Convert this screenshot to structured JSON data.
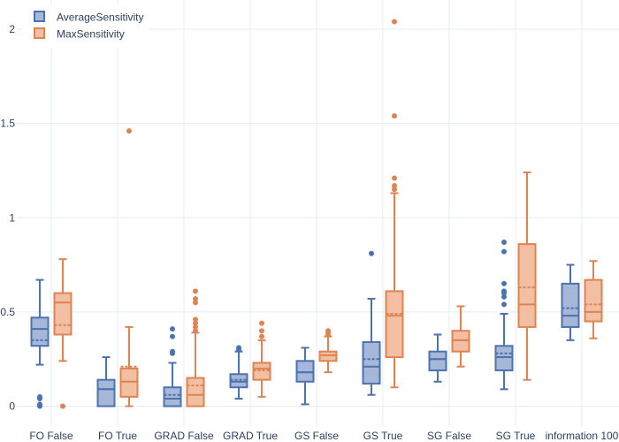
{
  "chart_data": {
    "type": "box",
    "title": "",
    "xlabel": "",
    "ylabel": "",
    "ylim": [
      -0.12,
      2.1
    ],
    "yticks": [
      0,
      0.5,
      1,
      1.5,
      2
    ],
    "ytick_labels": [
      "0",
      "0.5",
      "1",
      "1.5",
      "2"
    ],
    "categories": [
      "FO False",
      "FO True",
      "GRAD False",
      "GRAD True",
      "GS False",
      "GS True",
      "SG False",
      "SG True",
      "information 100"
    ],
    "grid": true,
    "legend_position": "top-left",
    "series": [
      {
        "name": "AverageSensitivity",
        "color": "#4c72b0",
        "fill": "#a6b7d8",
        "boxes": [
          {
            "min": 0.22,
            "q1": 0.32,
            "median": 0.41,
            "q3": 0.47,
            "max": 0.67,
            "mean": 0.35,
            "outliers": [
              0.0,
              0.01,
              0.04,
              0.05
            ]
          },
          {
            "min": 0.0,
            "q1": 0.0,
            "median": 0.09,
            "q3": 0.14,
            "max": 0.26,
            "mean": 0.09,
            "outliers": []
          },
          {
            "min": 0.0,
            "q1": 0.0,
            "median": 0.04,
            "q3": 0.1,
            "max": 0.23,
            "mean": 0.06,
            "outliers": [
              0.28,
              0.29,
              0.37,
              0.41
            ]
          },
          {
            "min": 0.04,
            "q1": 0.1,
            "median": 0.13,
            "q3": 0.17,
            "max": 0.29,
            "mean": 0.14,
            "outliers": [
              0.3,
              0.31
            ]
          },
          {
            "min": 0.01,
            "q1": 0.13,
            "median": 0.18,
            "q3": 0.24,
            "max": 0.31,
            "mean": 0.18,
            "outliers": []
          },
          {
            "min": 0.06,
            "q1": 0.12,
            "median": 0.21,
            "q3": 0.34,
            "max": 0.57,
            "mean": 0.25,
            "outliers": [
              0.81
            ]
          },
          {
            "min": 0.13,
            "q1": 0.19,
            "median": 0.25,
            "q3": 0.29,
            "max": 0.38,
            "mean": 0.25,
            "outliers": []
          },
          {
            "min": 0.09,
            "q1": 0.19,
            "median": 0.26,
            "q3": 0.32,
            "max": 0.49,
            "mean": 0.28,
            "outliers": [
              0.54,
              0.58,
              0.6,
              0.61,
              0.65,
              0.82,
              0.87
            ]
          },
          {
            "min": 0.35,
            "q1": 0.42,
            "median": 0.48,
            "q3": 0.65,
            "max": 0.75,
            "mean": 0.52,
            "outliers": []
          }
        ]
      },
      {
        "name": "MaxSensitivity",
        "color": "#dd8452",
        "fill": "#f2bfa2",
        "boxes": [
          {
            "min": 0.24,
            "q1": 0.38,
            "median": 0.55,
            "q3": 0.6,
            "max": 0.78,
            "mean": 0.43,
            "outliers": [
              0.0
            ]
          },
          {
            "min": 0.0,
            "q1": 0.05,
            "median": 0.13,
            "q3": 0.2,
            "max": 0.42,
            "mean": 0.21,
            "outliers": [
              1.46
            ]
          },
          {
            "min": 0.0,
            "q1": 0.0,
            "median": 0.06,
            "q3": 0.15,
            "max": 0.39,
            "mean": 0.11,
            "outliers": [
              0.4,
              0.42,
              0.44,
              0.46,
              0.55,
              0.57,
              0.61
            ]
          },
          {
            "min": 0.05,
            "q1": 0.14,
            "median": 0.2,
            "q3": 0.23,
            "max": 0.35,
            "mean": 0.19,
            "outliers": [
              0.37,
              0.4,
              0.44
            ]
          },
          {
            "min": 0.18,
            "q1": 0.24,
            "median": 0.27,
            "q3": 0.29,
            "max": 0.37,
            "mean": 0.27,
            "outliers": [
              0.38,
              0.39,
              0.4
            ]
          },
          {
            "min": 0.1,
            "q1": 0.26,
            "median": 0.48,
            "q3": 0.61,
            "max": 1.13,
            "mean": 0.49,
            "outliers": [
              1.15,
              1.17,
              1.21,
              1.54,
              2.04
            ]
          },
          {
            "min": 0.21,
            "q1": 0.29,
            "median": 0.35,
            "q3": 0.4,
            "max": 0.53,
            "mean": 0.35,
            "outliers": []
          },
          {
            "min": 0.14,
            "q1": 0.42,
            "median": 0.54,
            "q3": 0.86,
            "max": 1.24,
            "mean": 0.63,
            "outliers": []
          },
          {
            "min": 0.36,
            "q1": 0.45,
            "median": 0.5,
            "q3": 0.67,
            "max": 0.77,
            "mean": 0.54,
            "outliers": []
          }
        ]
      }
    ]
  }
}
